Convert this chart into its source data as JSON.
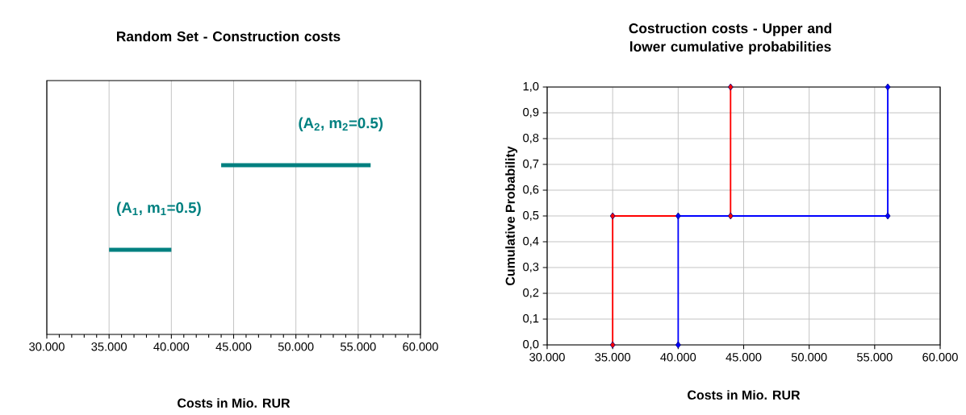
{
  "chart_data": [
    {
      "type": "bar",
      "orientation": "horizontal",
      "title": "Random Set - Construction costs",
      "xlabel": "Costs in Mio. RUR",
      "xlim": [
        30000,
        60000
      ],
      "xticks": [
        {
          "value": 30000,
          "label": "30.000"
        },
        {
          "value": 35000,
          "label": "35.000"
        },
        {
          "value": 40000,
          "label": "40.000"
        },
        {
          "value": 45000,
          "label": "45.000"
        },
        {
          "value": 50000,
          "label": "50.000"
        },
        {
          "value": 55000,
          "label": "55.000"
        },
        {
          "value": 60000,
          "label": "60.000"
        }
      ],
      "grid": "x",
      "color": "#008080",
      "categories": [
        null,
        null
      ],
      "values": [
        12000,
        5000
      ],
      "base": [
        44000,
        35000
      ],
      "annotations": [
        "(A$_{2}$, m$_{2}$=0.5)",
        "(A$_{1}$, m$_{1}$=0.5)"
      ]
    },
    {
      "type": "line",
      "title": "Costruction costs - Upper and lower cumulative probabilities",
      "xlabel": "Costs in Mio. RUR",
      "ylabel": "Cumulative Probability",
      "xlim": [
        30000,
        60000
      ],
      "ylim": [
        0,
        1
      ],
      "xticks": [
        {
          "value": 30000,
          "label": "30.000"
        },
        {
          "value": 35000,
          "label": "35.000"
        },
        {
          "value": 40000,
          "label": "40.000"
        },
        {
          "value": 45000,
          "label": "45.000"
        },
        {
          "value": 50000,
          "label": "50.000"
        },
        {
          "value": 55000,
          "label": "55.000"
        },
        {
          "value": 60000,
          "label": "60.000"
        }
      ],
      "yticks": [
        {
          "value": 0,
          "label": "0,0"
        },
        {
          "value": 0.1,
          "label": "0,1"
        },
        {
          "value": 0.2,
          "label": "0,2"
        },
        {
          "value": 0.3,
          "label": "0,3"
        },
        {
          "value": 0.4,
          "label": "0,4"
        },
        {
          "value": 0.5,
          "label": "0,5"
        },
        {
          "value": 0.6,
          "label": "0,6"
        },
        {
          "value": 0.7,
          "label": "0,7"
        },
        {
          "value": 0.8,
          "label": "0,8"
        },
        {
          "value": 0.9,
          "label": "0,9"
        },
        {
          "value": 1,
          "label": "1,0"
        }
      ],
      "grid": true,
      "marker": "diamond",
      "series": [
        {
          "color": "#ff0000",
          "x": [
            35000,
            35000,
            44000,
            44000
          ],
          "values": [
            0,
            0.5,
            0.5,
            1
          ]
        },
        {
          "color": "#0000ff",
          "x": [
            40000,
            40000,
            56000,
            56000
          ],
          "values": [
            0,
            0.5,
            0.5,
            1
          ]
        }
      ]
    }
  ]
}
